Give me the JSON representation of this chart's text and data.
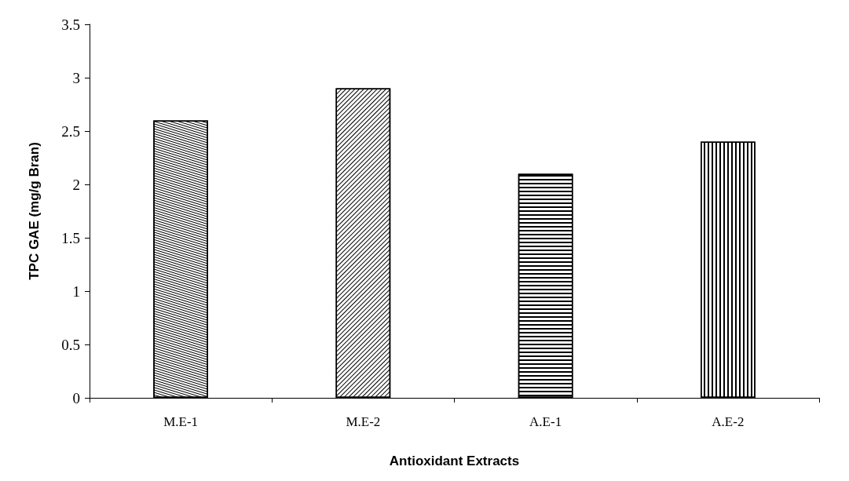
{
  "chart_data": {
    "type": "bar",
    "xlabel": "Antioxidant Extracts",
    "ylabel": "TPC GAE (mg/g Bran)",
    "categories": [
      "M.E-1",
      "M.E-2",
      "A.E-1",
      "A.E-2"
    ],
    "values": [
      2.6,
      2.9,
      2.1,
      2.4
    ],
    "colors": [
      "#ffffff",
      "#ffffff",
      "#ffffff",
      "#ffffff"
    ],
    "ylim": [
      0,
      3.5
    ],
    "yticks": [
      0,
      0.5,
      1,
      1.5,
      2,
      2.5,
      3,
      3.5
    ],
    "grid": false
  }
}
